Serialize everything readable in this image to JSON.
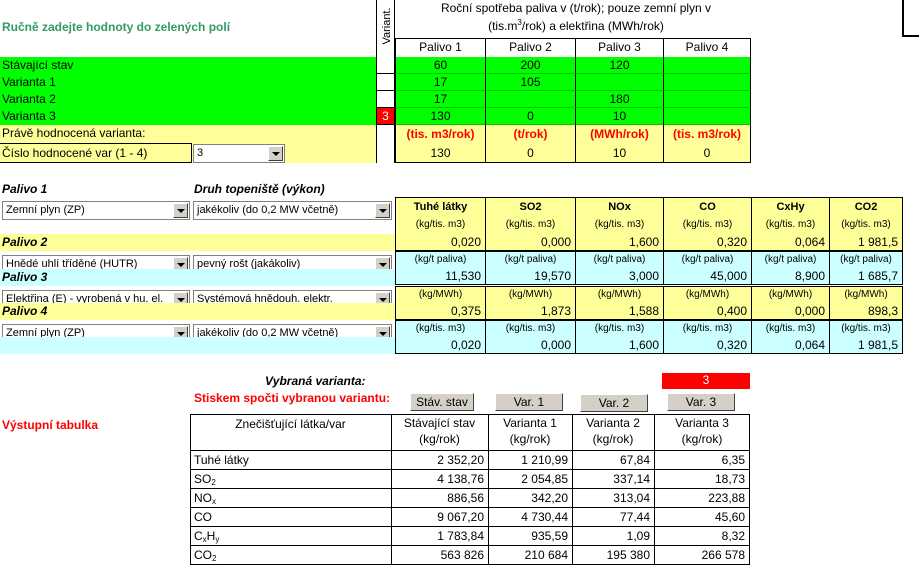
{
  "header": {
    "instruction": "Ručně zadejte hodnoty do zelených polí",
    "variant_col_label": "Variant.",
    "consumption_title_1": "Roční spotřeba paliva v (t/rok); pouze zemní plyn v",
    "consumption_title_2a": "(tis.m",
    "consumption_title_2sup": "3",
    "consumption_title_2b": "/rok) a elektřina (MWh/rok)",
    "fuel_cols": [
      "Palivo 1",
      "Palivo 2",
      "Palivo 3",
      "Palivo 4"
    ]
  },
  "input_rows": [
    {
      "label": "Stávající stav",
      "marker": "",
      "values": [
        "60",
        "200",
        "120",
        ""
      ]
    },
    {
      "label": "Varianta 1",
      "marker": "",
      "values": [
        "17",
        "105",
        "",
        ""
      ]
    },
    {
      "label": "Varianta 2",
      "marker": "",
      "values": [
        "17",
        "",
        "180",
        ""
      ]
    },
    {
      "label": "Varianta 3",
      "marker": "3",
      "values": [
        "130",
        "0",
        "10",
        ""
      ]
    }
  ],
  "evaluated": {
    "label": "Právě hodnocená varianta:",
    "units": [
      "(tis. m3/rok)",
      "(t/rok)",
      "(MWh/rok)",
      "(tis. m3/rok)"
    ],
    "number_label": "Číslo hodnocené var (1 - 4)",
    "number_value": "3",
    "values": [
      "130",
      "0",
      "10",
      "0"
    ]
  },
  "fuel_section": {
    "fuel_header": "Palivo 1",
    "furnace_header": "Druh topeniště (výkon)",
    "pollutants": [
      "Tuhé látky",
      "SO2",
      "NOx",
      "CO",
      "CxHy",
      "CO2"
    ],
    "fuels": [
      {
        "fuel": "Zemní plyn (ZP)",
        "furnace": "jakékoliv (do 0,2 MW včetně)",
        "unit": "(kg/tis. m3)",
        "factors": [
          "0,020",
          "0,000",
          "1,600",
          "0,320",
          "0,064",
          "1 981,5"
        ]
      },
      {
        "label": "Palivo 2",
        "fuel": "Hnědé uhlí tříděné (HUTR)",
        "furnace": "pevný rošt (jakákoliv)",
        "unit": "(kg/t paliva)",
        "factors": [
          "11,530",
          "19,570",
          "3,000",
          "45,000",
          "8,900",
          "1 685,7"
        ]
      },
      {
        "label": "Palivo 3",
        "fuel": "Elektřina (E) - vyrobená v hu. el.",
        "furnace": "Systémová hnědouh. elektr.",
        "unit": "(kg/MWh)",
        "factors": [
          "0,375",
          "1,873",
          "1,588",
          "0,400",
          "0,000",
          "898,3"
        ]
      },
      {
        "label": "Palivo 4",
        "fuel": "Zemní plyn (ZP)",
        "furnace": "jakékoliv (do 0,2 MW včetně)",
        "unit": "(kg/tis. m3)",
        "factors": [
          "0,020",
          "0,000",
          "1,600",
          "0,320",
          "0,064",
          "1 981,5"
        ]
      }
    ]
  },
  "selection": {
    "selected_label": "Vybraná varianta:",
    "selected_value": "3",
    "compute_label": "Stiskem spočti vybranou variantu:",
    "buttons": [
      "Stáv. stav",
      "Var. 1",
      "Var. 2",
      "Var. 3"
    ]
  },
  "output": {
    "title": "Výstupní tabulka",
    "header_first": "Znečišťující látka/var",
    "headers": [
      {
        "name": "Stávající stav",
        "unit": "(kg/rok)"
      },
      {
        "name": "Varianta 1",
        "unit": "(kg/rok)"
      },
      {
        "name": "Varianta 2",
        "unit": "(kg/rok)"
      },
      {
        "name": "Varianta 3",
        "unit": "(kg/rok)"
      }
    ],
    "rows": [
      {
        "label": "Tuhé látky",
        "values": [
          "2 352,20",
          "1 210,99",
          "67,84",
          "6,35"
        ]
      },
      {
        "label": "SO",
        "sub": "2",
        "values": [
          "4 138,76",
          "2 054,85",
          "337,14",
          "18,73"
        ]
      },
      {
        "label": "NO",
        "sub": "x",
        "values": [
          "886,56",
          "342,20",
          "313,04",
          "223,88"
        ]
      },
      {
        "label": "CO",
        "values": [
          "9 067,20",
          "4 730,44",
          "77,44",
          "45,60"
        ]
      },
      {
        "label": "C",
        "sub": "x",
        "label2": "H",
        "sub2": "y",
        "values": [
          "1 783,84",
          "935,59",
          "1,09",
          "8,32"
        ]
      },
      {
        "label": "CO",
        "sub": "2",
        "values": [
          "563 826",
          "210 684",
          "195 380",
          "266 578"
        ]
      }
    ]
  },
  "colors": {
    "input_green": "#00ff00",
    "yellow": "#ffff99",
    "cyan": "#ccffff",
    "accent_red": "#ff0000",
    "teal_text": "#339966"
  }
}
